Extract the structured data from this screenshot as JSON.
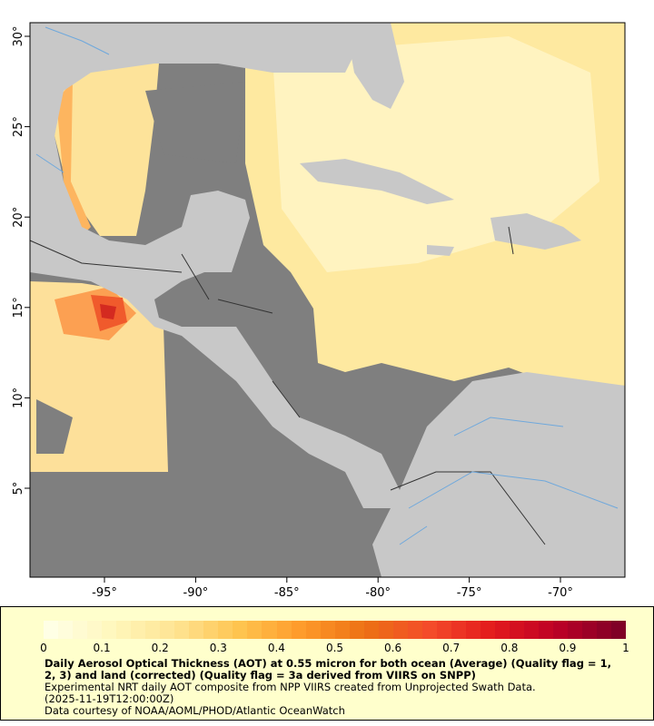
{
  "map": {
    "lon_ticks": [
      "-95°",
      "-90°",
      "-85°",
      "-80°",
      "-75°",
      "-70°"
    ],
    "lat_ticks": [
      "30°",
      "25°",
      "20°",
      "15°",
      "10°",
      "5°"
    ],
    "colors": {
      "no_data": "#7f7f7f",
      "land": "#c8c8c8",
      "rivers": "#6fa8dc",
      "borders": "#333333"
    }
  },
  "legend": {
    "colorbar_ticks": [
      "0",
      "0.1",
      "0.2",
      "0.3",
      "0.4",
      "0.5",
      "0.6",
      "0.7",
      "0.8",
      "0.9",
      "1"
    ],
    "colormap": [
      "#ffffe5",
      "#fff7bc",
      "#fee391",
      "#fec44f",
      "#fe9929",
      "#ec7014",
      "#f44b2a",
      "#e31a1c",
      "#bd0026",
      "#800026"
    ],
    "title": "Daily Aerosol Optical Thickness (AOT) at 0.55 micron for both ocean (Average) (Quality flag = 1, 2, 3) and land (corrected) (Quality flag = 3a derived from VIIRS on SNPP)",
    "line1": "Experimental NRT daily AOT composite from NPP VIIRS created from Unprojected Swath Data.",
    "line2": "(2025-11-19T12:00:00Z)",
    "line3": "Data courtesy of NOAA/AOML/PHOD/Atlantic OceanWatch"
  }
}
